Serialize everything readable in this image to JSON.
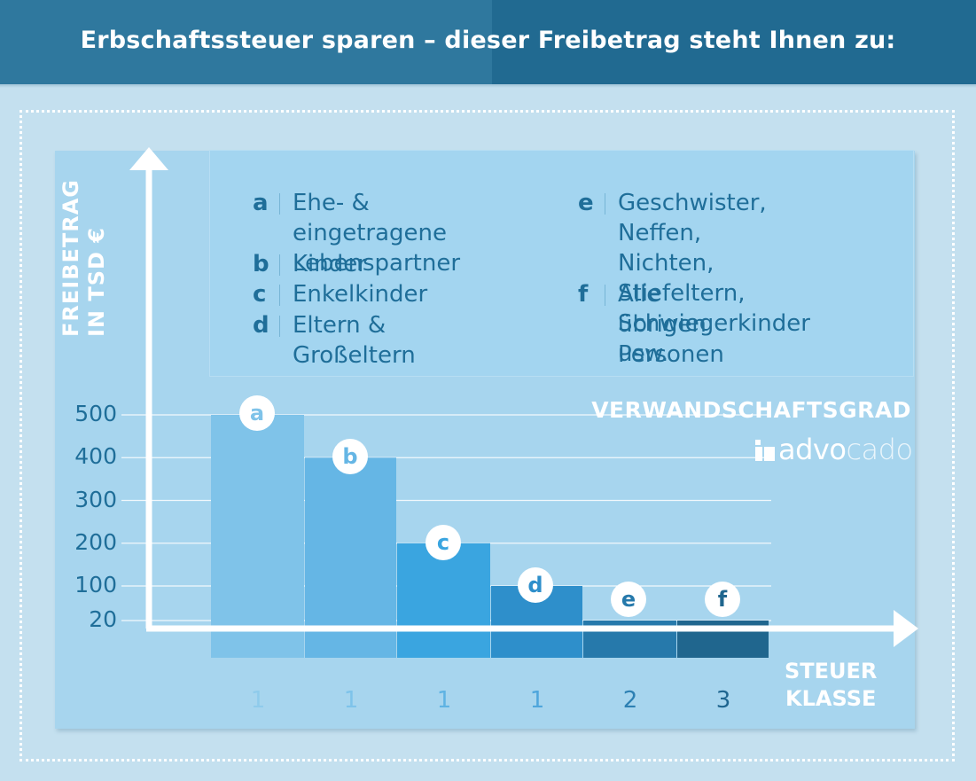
{
  "header": {
    "title": "Erbschaftssteuer sparen – dieser Freibetrag steht Ihnen zu:"
  },
  "legend": {
    "left": [
      {
        "key": "a",
        "text": "Ehe- & eingetragene\nLebenspartner"
      },
      {
        "key": "b",
        "text": "Kinder"
      },
      {
        "key": "c",
        "text": "Enkelkinder"
      },
      {
        "key": "d",
        "text": "Eltern & Großeltern"
      }
    ],
    "right": [
      {
        "key": "e",
        "text": "Geschwister, Neffen,\nNichten, Stiefeltern,\nSchwiegerkinder usw."
      },
      {
        "key": "f",
        "text": "Alle übrigen Personen"
      }
    ]
  },
  "yaxis_title": {
    "line1": "FREIBETRAG",
    "line2": "IN TSD €"
  },
  "xaxis_title": {
    "line1": "STEUER",
    "line2": "KLASSE"
  },
  "watermark": "VERWANDSCHAFTSGRAD",
  "logo": {
    "text_dark": "advo",
    "text_light": "cado"
  },
  "colors": {
    "banner_left": "#2f789e",
    "banner_right": "#216a91",
    "background": "#c4e0ef",
    "text_blue": "#1f6e99",
    "bars": [
      "#7fc3e9",
      "#65b6e5",
      "#3aa5e0",
      "#2e8fcb",
      "#2679ab",
      "#20668e"
    ]
  },
  "chart_data": {
    "type": "bar",
    "categories": [
      "a",
      "b",
      "c",
      "d",
      "e",
      "f"
    ],
    "values": [
      500,
      400,
      200,
      100,
      20,
      20
    ],
    "tax_class": [
      "1",
      "1",
      "1",
      "1",
      "2",
      "3"
    ],
    "yticks": [
      20,
      100,
      200,
      300,
      400,
      500
    ],
    "ylim": [
      0,
      500
    ],
    "xlabel": "STEUER KLASSE",
    "ylabel": "FREIBETRAG IN TSD €",
    "grid": true
  }
}
